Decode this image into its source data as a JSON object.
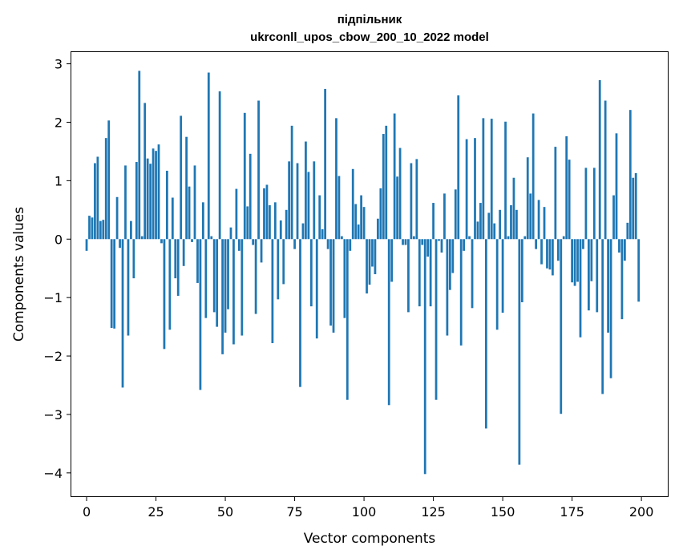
{
  "chart_data": {
    "type": "bar",
    "title_line1": "підпільник",
    "title_line2": "ukrconll_upos_cbow_200_10_2022 model",
    "xlabel": "Vector components",
    "ylabel": "Components values",
    "xlim": [
      -5.5,
      209.5
    ],
    "ylim": [
      -4.4,
      3.2
    ],
    "xticks": [
      0,
      25,
      50,
      75,
      100,
      125,
      150,
      175,
      200
    ],
    "xtick_labels": [
      "0",
      "25",
      "50",
      "75",
      "100",
      "125",
      "150",
      "175",
      "200"
    ],
    "yticks": [
      3,
      2,
      1,
      0,
      -1,
      -2,
      -3,
      -4
    ],
    "ytick_labels": [
      "3",
      "2",
      "1",
      "0",
      "−1",
      "−2",
      "−3",
      "−4"
    ],
    "bar_color": "#1f77b4",
    "grid": false,
    "values": [
      -0.2,
      0.4,
      0.37,
      1.3,
      1.41,
      0.31,
      0.33,
      1.73,
      2.03,
      -1.52,
      -1.53,
      0.72,
      -0.15,
      -2.54,
      1.26,
      -1.65,
      0.31,
      -0.67,
      1.32,
      2.88,
      0.05,
      2.33,
      1.38,
      1.29,
      1.55,
      1.51,
      1.62,
      -0.07,
      -1.88,
      1.17,
      -1.55,
      0.71,
      -0.67,
      -0.97,
      2.11,
      -0.46,
      1.75,
      0.9,
      -0.05,
      1.26,
      -0.75,
      -2.58,
      0.63,
      -1.35,
      2.85,
      0.05,
      -1.25,
      -1.5,
      2.53,
      -1.97,
      -1.6,
      -1.2,
      0.2,
      -1.8,
      0.86,
      -0.2,
      -1.65,
      2.16,
      0.56,
      1.46,
      -0.1,
      -1.28,
      2.37,
      -0.4,
      0.87,
      0.93,
      0.58,
      -1.78,
      0.63,
      -1.03,
      0.32,
      -0.77,
      0.5,
      1.33,
      1.94,
      -0.17,
      1.3,
      -2.53,
      0.27,
      1.67,
      1.15,
      -1.15,
      1.33,
      -1.7,
      0.75,
      0.17,
      2.57,
      -0.17,
      -1.48,
      -1.6,
      2.07,
      1.08,
      0.05,
      -1.35,
      -2.75,
      -0.2,
      1.2,
      0.6,
      0.25,
      0.75,
      0.55,
      -0.93,
      -0.78,
      -0.47,
      -0.6,
      0.35,
      0.87,
      1.8,
      1.94,
      -2.84,
      -0.73,
      2.15,
      1.07,
      1.56,
      -0.1,
      -0.1,
      -1.25,
      1.3,
      0.05,
      1.37,
      -1.15,
      -0.1,
      -4.02,
      -0.3,
      -1.15,
      0.62,
      -2.75,
      -0.03,
      -0.23,
      0.78,
      -1.65,
      -0.87,
      -0.58,
      0.85,
      2.46,
      -1.82,
      -0.2,
      1.71,
      0.05,
      -1.18,
      1.73,
      0.3,
      0.62,
      2.07,
      -3.24,
      0.45,
      2.06,
      0.27,
      -1.55,
      0.5,
      -1.26,
      2.01,
      0.05,
      0.58,
      1.05,
      0.5,
      -3.86,
      -1.08,
      0.05,
      1.4,
      0.78,
      2.15,
      -0.17,
      0.67,
      -0.43,
      0.55,
      -0.5,
      -0.52,
      -0.62,
      1.58,
      -0.37,
      -2.99,
      0.05,
      1.76,
      1.36,
      -0.74,
      -0.8,
      -0.73,
      -1.68,
      -0.17,
      1.22,
      -1.22,
      -0.72,
      1.22,
      -1.25,
      2.72,
      -2.65,
      2.37,
      -1.6,
      -2.38,
      0.75,
      1.81,
      -0.23,
      -1.37,
      -0.37,
      0.28,
      2.21,
      1.05,
      1.13,
      -1.07
    ]
  }
}
